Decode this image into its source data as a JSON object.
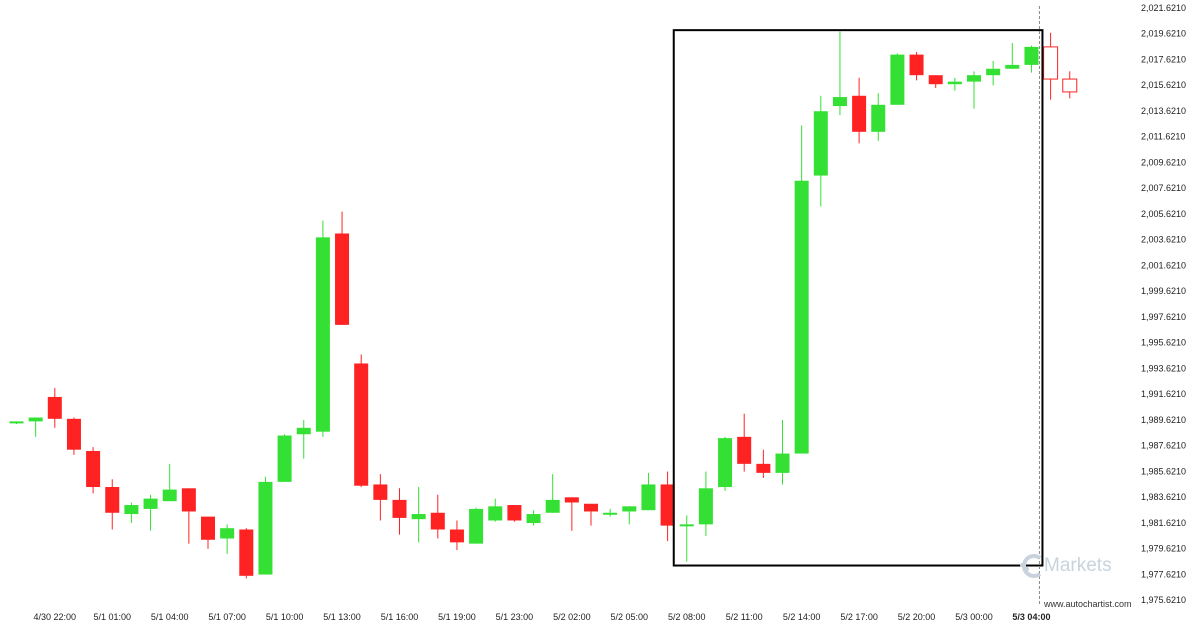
{
  "chart_data": {
    "type": "candlestick",
    "title": "",
    "xlabel": "",
    "ylabel": "",
    "ylim": [
      1975.621,
      2021.621
    ],
    "y_ticks": [
      "2,021.6210",
      "2,019.6210",
      "2,017.6210",
      "2,015.6210",
      "2,013.6210",
      "2,011.6210",
      "2,009.6210",
      "2,007.6210",
      "2,005.6210",
      "2,003.6210",
      "2,001.6210",
      "1,999.6210",
      "1,997.6210",
      "1,995.6210",
      "1,993.6210",
      "1,991.6210",
      "1,989.6210",
      "1,987.6210",
      "1,985.6210",
      "1,983.6210",
      "1,981.6210",
      "1,979.6210",
      "1,977.6210",
      "1,975.6210"
    ],
    "x_ticks": [
      {
        "label": "4/30 22:00",
        "index": 2
      },
      {
        "label": "5/1 01:00",
        "index": 5
      },
      {
        "label": "5/1 04:00",
        "index": 8
      },
      {
        "label": "5/1 07:00",
        "index": 11
      },
      {
        "label": "5/1 10:00",
        "index": 14
      },
      {
        "label": "5/1 13:00",
        "index": 17
      },
      {
        "label": "5/1 16:00",
        "index": 20
      },
      {
        "label": "5/1 19:00",
        "index": 23
      },
      {
        "label": "5/1 23:00",
        "index": 26
      },
      {
        "label": "5/2 02:00",
        "index": 29
      },
      {
        "label": "5/2 05:00",
        "index": 32
      },
      {
        "label": "5/2 08:00",
        "index": 35
      },
      {
        "label": "5/2 11:00",
        "index": 38
      },
      {
        "label": "5/2 14:00",
        "index": 41
      },
      {
        "label": "5/2 17:00",
        "index": 44
      },
      {
        "label": "5/2 20:00",
        "index": 47
      },
      {
        "label": "5/3 00:00",
        "index": 50
      },
      {
        "label": "5/3 04:00",
        "index": 53,
        "bold": true
      }
    ],
    "candles": [
      [
        1989.4,
        1989.5,
        1989.3,
        1989.5
      ],
      [
        1989.5,
        1989.8,
        1988.3,
        1989.8
      ],
      [
        1991.4,
        1992.1,
        1989.0,
        1989.7
      ],
      [
        1989.7,
        1989.8,
        1986.9,
        1987.3
      ],
      [
        1987.2,
        1987.5,
        1983.9,
        1984.4
      ],
      [
        1984.4,
        1985.0,
        1981.1,
        1982.4
      ],
      [
        1982.3,
        1983.2,
        1981.6,
        1983.0
      ],
      [
        1982.7,
        1983.8,
        1981.0,
        1983.5
      ],
      [
        1983.3,
        1986.2,
        1983.3,
        1984.2
      ],
      [
        1984.3,
        1984.3,
        1980.0,
        1982.5
      ],
      [
        1982.1,
        1982.1,
        1979.6,
        1980.3
      ],
      [
        1980.4,
        1981.5,
        1979.2,
        1981.2
      ],
      [
        1981.1,
        1981.2,
        1977.3,
        1977.5
      ],
      [
        1977.6,
        1985.2,
        1977.6,
        1984.8
      ],
      [
        1984.8,
        1988.5,
        1984.8,
        1988.4
      ],
      [
        1988.5,
        1989.6,
        1986.6,
        1989.0
      ],
      [
        1988.7,
        2005.1,
        1988.3,
        2003.8
      ],
      [
        2004.1,
        2005.8,
        1997.0,
        1997.0
      ],
      [
        1994.0,
        1994.7,
        1984.4,
        1984.5
      ],
      [
        1984.6,
        1985.4,
        1981.8,
        1983.4
      ],
      [
        1983.4,
        1984.3,
        1980.7,
        1982.0
      ],
      [
        1981.9,
        1984.4,
        1980.1,
        1982.3
      ],
      [
        1982.4,
        1983.8,
        1980.4,
        1981.1
      ],
      [
        1981.1,
        1981.8,
        1979.5,
        1980.1
      ],
      [
        1980.0,
        1982.8,
        1980.0,
        1982.7
      ],
      [
        1981.8,
        1983.5,
        1981.7,
        1982.9
      ],
      [
        1983.0,
        1983.0,
        1981.7,
        1981.8
      ],
      [
        1981.6,
        1982.6,
        1981.4,
        1982.3
      ],
      [
        1982.4,
        1985.4,
        1982.4,
        1983.4
      ],
      [
        1983.6,
        1983.6,
        1981.0,
        1983.2
      ],
      [
        1983.1,
        1982.9,
        1981.4,
        1982.5
      ],
      [
        1982.3,
        1982.7,
        1982.1,
        1982.4
      ],
      [
        1982.5,
        1982.9,
        1981.5,
        1982.9
      ],
      [
        1982.6,
        1985.5,
        1982.6,
        1984.6
      ],
      [
        1984.6,
        1985.6,
        1980.2,
        1981.4
      ],
      [
        1981.5,
        1982.2,
        1978.6,
        1981.5
      ],
      [
        1981.5,
        1985.6,
        1980.6,
        1984.3
      ],
      [
        1984.4,
        1988.3,
        1984.1,
        1988.2
      ],
      [
        1988.3,
        1990.1,
        1985.6,
        1986.2
      ],
      [
        1986.2,
        1987.3,
        1985.1,
        1985.5
      ],
      [
        1985.5,
        1989.6,
        1984.6,
        1987.0
      ],
      [
        1987.0,
        2012.5,
        1987.0,
        2008.2
      ],
      [
        2008.6,
        2014.8,
        2006.2,
        2013.6
      ],
      [
        2014.0,
        2019.8,
        2013.3,
        2014.7
      ],
      [
        2014.8,
        2016.2,
        2011.1,
        2012.0
      ],
      [
        2012.0,
        2015.0,
        2011.3,
        2014.1
      ],
      [
        2014.1,
        2018.1,
        2014.1,
        2018.0
      ],
      [
        2018.0,
        2018.2,
        2016.0,
        2016.4
      ],
      [
        2016.4,
        2016.4,
        2015.4,
        2015.7
      ],
      [
        2015.7,
        2016.2,
        2015.2,
        2015.9
      ],
      [
        2015.9,
        2016.7,
        2013.8,
        2016.4
      ],
      [
        2016.4,
        2017.5,
        2015.6,
        2016.9
      ],
      [
        2016.9,
        2018.9,
        2016.9,
        2017.2
      ],
      [
        2017.2,
        2018.7,
        2016.6,
        2018.6
      ],
      [
        2018.6,
        2019.7,
        2014.5,
        2016.1
      ],
      [
        2016.1,
        2016.7,
        2014.6,
        2015.1
      ]
    ],
    "highlight_range": {
      "start_index": 35,
      "end_index": 53,
      "y_high": 2019.9,
      "y_low": 1978.3
    },
    "current_time_index": 53,
    "colors": {
      "bull": "#33e033",
      "bear": "#ff2222",
      "wick": "#a0a0a0",
      "box": "#000000",
      "vline": "#888888",
      "last_candle": "#ff2222"
    }
  },
  "watermark": {
    "brand_suffix": "Markets",
    "icon": "c-arc-logo-icon"
  },
  "credit": "www.autochartist.com"
}
